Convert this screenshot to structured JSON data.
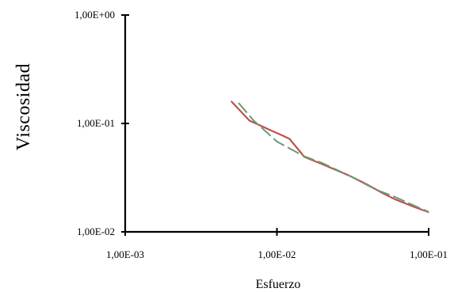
{
  "chart_data": {
    "type": "line",
    "title": "",
    "xlabel": "Esfuerzo",
    "ylabel": "Viscosidad",
    "x_scale": "log",
    "y_scale": "log",
    "xlim": [
      0.001,
      0.1
    ],
    "ylim": [
      0.01,
      1.0
    ],
    "x_ticks": [
      {
        "value": 0.001,
        "label": "1,00E-03"
      },
      {
        "value": 0.01,
        "label": "1,00E-02"
      },
      {
        "value": 0.1,
        "label": "1,00E-01"
      }
    ],
    "y_ticks": [
      {
        "value": 0.01,
        "label": "1,00E-02"
      },
      {
        "value": 0.1,
        "label": "1,00E-01"
      },
      {
        "value": 1.0,
        "label": "1,00E+00"
      }
    ],
    "grid": false,
    "legend": false,
    "series": [
      {
        "style": "solid",
        "color": "#c0504d",
        "points": [
          [
            0.005,
            0.16
          ],
          [
            0.0066,
            0.106
          ],
          [
            0.0075,
            0.098
          ],
          [
            0.009,
            0.087
          ],
          [
            0.011,
            0.077
          ],
          [
            0.0121,
            0.072
          ],
          [
            0.0152,
            0.049
          ],
          [
            0.02,
            0.042
          ],
          [
            0.03,
            0.033
          ],
          [
            0.04,
            0.027
          ],
          [
            0.049,
            0.023
          ],
          [
            0.06,
            0.02
          ],
          [
            0.08,
            0.017
          ],
          [
            0.1,
            0.0152
          ]
        ]
      },
      {
        "style": "dashed",
        "color": "#6b9a73",
        "points": [
          [
            0.0056,
            0.154
          ],
          [
            0.007,
            0.107
          ],
          [
            0.01,
            0.068
          ],
          [
            0.015,
            0.05
          ],
          [
            0.02,
            0.043
          ],
          [
            0.03,
            0.033
          ],
          [
            0.045,
            0.0245
          ],
          [
            0.06,
            0.021
          ],
          [
            0.08,
            0.0175
          ],
          [
            0.1,
            0.0153
          ]
        ]
      }
    ]
  }
}
